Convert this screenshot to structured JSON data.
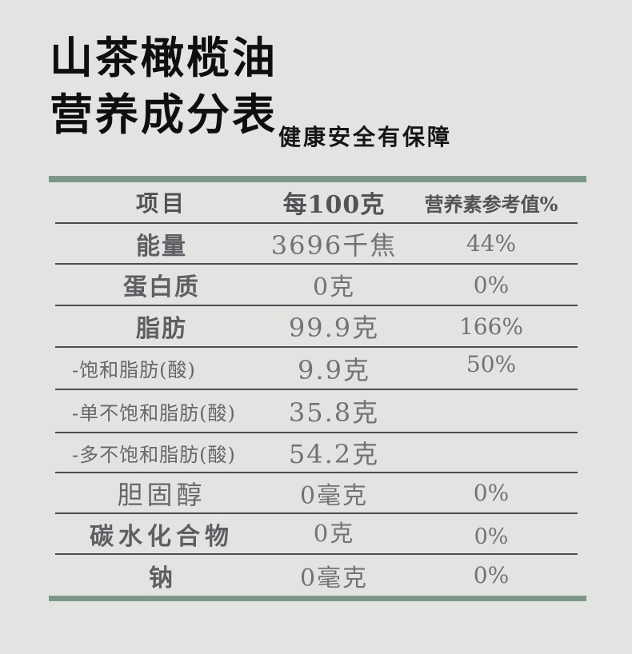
{
  "page": {
    "background_color": "#e3e3e1",
    "accent_color": "#7d968a",
    "line_color": "#4d4d4e",
    "text_gray": "#727376"
  },
  "header": {
    "title_line1": "山茶橄榄油",
    "title_line2": "营养成分表",
    "subtitle": "健康安全有保障"
  },
  "table": {
    "columns": [
      "项目",
      "每100克",
      "营养素参考值%"
    ],
    "rows": [
      {
        "label": "能量",
        "value": "3696千焦",
        "nrv": "44%",
        "style": "bold"
      },
      {
        "label": "蛋白质",
        "value": "0克",
        "nrv": "0%",
        "style": "bold"
      },
      {
        "label": "脂肪",
        "value": "99.9克",
        "nrv": "166%",
        "style": "bold"
      },
      {
        "label": "-饱和脂肪(酸)",
        "value": "9.9克",
        "nrv": "50%",
        "style": "sub"
      },
      {
        "label": "-单不饱和脂肪(酸)",
        "value": "35.8克",
        "nrv": "",
        "style": "sub"
      },
      {
        "label": "-多不饱和脂肪(酸)",
        "value": "54.2克",
        "nrv": "",
        "style": "sub"
      },
      {
        "label": "胆固醇",
        "value": "0毫克",
        "nrv": "0%",
        "style": "light"
      },
      {
        "label": "碳水化合物",
        "value": "0克",
        "nrv": "0%",
        "style": "bold"
      },
      {
        "label": "钠",
        "value": "0毫克",
        "nrv": "0%",
        "style": "bold"
      }
    ]
  }
}
